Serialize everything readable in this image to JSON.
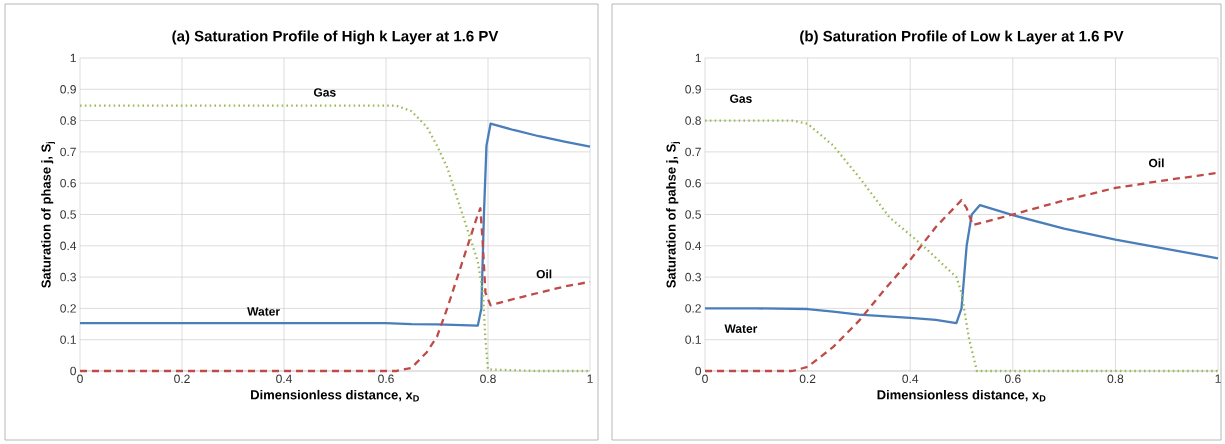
{
  "chart_data": [
    {
      "type": "line",
      "title": "(a) Saturation Profile of High k Layer at 1.6 PV",
      "xlabel": "Dimensionless distance, x$_{D}$",
      "ylabel": "Saturation of phase j, S$_{j}$",
      "xlim": [
        0,
        1
      ],
      "ylim": [
        0,
        1
      ],
      "xticks": [
        0,
        0.2,
        0.4,
        0.6,
        0.8,
        1
      ],
      "yticks": [
        0,
        0.1,
        0.2,
        0.3,
        0.4,
        0.5,
        0.6,
        0.7,
        0.8,
        0.9,
        1
      ],
      "grid": true,
      "series": [
        {
          "color": "#4a7ebb",
          "line_style": "solid",
          "x": [
            0,
            0.3,
            0.6,
            0.65,
            0.7,
            0.78,
            0.787,
            0.792,
            0.797,
            0.805,
            0.85,
            0.9,
            0.95,
            1
          ],
          "values": [
            0.153,
            0.153,
            0.153,
            0.15,
            0.149,
            0.145,
            0.2,
            0.5,
            0.72,
            0.79,
            0.77,
            0.75,
            0.733,
            0.717
          ]
        },
        {
          "color": "#be4b48",
          "line_style": "dashed",
          "x": [
            0,
            0.3,
            0.62,
            0.65,
            0.68,
            0.7,
            0.72,
            0.74,
            0.76,
            0.78,
            0.785,
            0.79,
            0.795,
            0.805,
            0.85,
            0.9,
            0.95,
            1
          ],
          "values": [
            0,
            0,
            0,
            0.01,
            0.06,
            0.11,
            0.2,
            0.3,
            0.4,
            0.5,
            0.52,
            0.4,
            0.25,
            0.21,
            0.23,
            0.25,
            0.27,
            0.285
          ]
        },
        {
          "color": "#9bbb59",
          "line_style": "dotted",
          "x": [
            0,
            0.3,
            0.62,
            0.65,
            0.68,
            0.7,
            0.72,
            0.74,
            0.76,
            0.78,
            0.79,
            0.795,
            0.8,
            0.9,
            1
          ],
          "values": [
            0.848,
            0.848,
            0.848,
            0.83,
            0.78,
            0.72,
            0.65,
            0.55,
            0.45,
            0.35,
            0.25,
            0.1,
            0.005,
            0,
            0
          ]
        }
      ],
      "annotations": [
        "Gas",
        "Water",
        "Oil"
      ]
    },
    {
      "type": "line",
      "title": "(b) Saturation Profile of Low k Layer at 1.6 PV",
      "xlabel": "Dimensionless distance, x$_{D}$",
      "ylabel": "Saturation of pahse j, S$_{j}$",
      "xlim": [
        0,
        1
      ],
      "ylim": [
        0,
        1
      ],
      "xticks": [
        0,
        0.2,
        0.4,
        0.6,
        0.8,
        1
      ],
      "yticks": [
        0,
        0.1,
        0.2,
        0.3,
        0.4,
        0.5,
        0.6,
        0.7,
        0.8,
        0.9,
        1
      ],
      "grid": true,
      "series": [
        {
          "color": "#4a7ebb",
          "line_style": "solid",
          "x": [
            0,
            0.1,
            0.2,
            0.25,
            0.3,
            0.4,
            0.45,
            0.49,
            0.5,
            0.51,
            0.52,
            0.536,
            0.6,
            0.7,
            0.8,
            0.9,
            1
          ],
          "values": [
            0.2,
            0.2,
            0.198,
            0.19,
            0.18,
            0.17,
            0.163,
            0.153,
            0.2,
            0.4,
            0.5,
            0.53,
            0.498,
            0.455,
            0.42,
            0.39,
            0.36
          ]
        },
        {
          "color": "#be4b48",
          "line_style": "dashed",
          "x": [
            0,
            0.17,
            0.2,
            0.25,
            0.3,
            0.35,
            0.4,
            0.45,
            0.5,
            0.51,
            0.522,
            0.6,
            0.7,
            0.8,
            0.9,
            1
          ],
          "values": [
            0,
            0,
            0.013,
            0.077,
            0.16,
            0.26,
            0.355,
            0.46,
            0.546,
            0.52,
            0.466,
            0.5,
            0.545,
            0.585,
            0.61,
            0.633
          ]
        },
        {
          "color": "#9bbb59",
          "line_style": "dotted",
          "x": [
            0,
            0.17,
            0.2,
            0.25,
            0.3,
            0.36,
            0.425,
            0.49,
            0.5,
            0.515,
            0.53,
            0.7,
            1
          ],
          "values": [
            0.8,
            0.8,
            0.79,
            0.72,
            0.62,
            0.49,
            0.4,
            0.3,
            0.25,
            0.1,
            0,
            0,
            0
          ]
        }
      ],
      "annotations": [
        "Gas",
        "Water",
        "Oil"
      ]
    }
  ]
}
